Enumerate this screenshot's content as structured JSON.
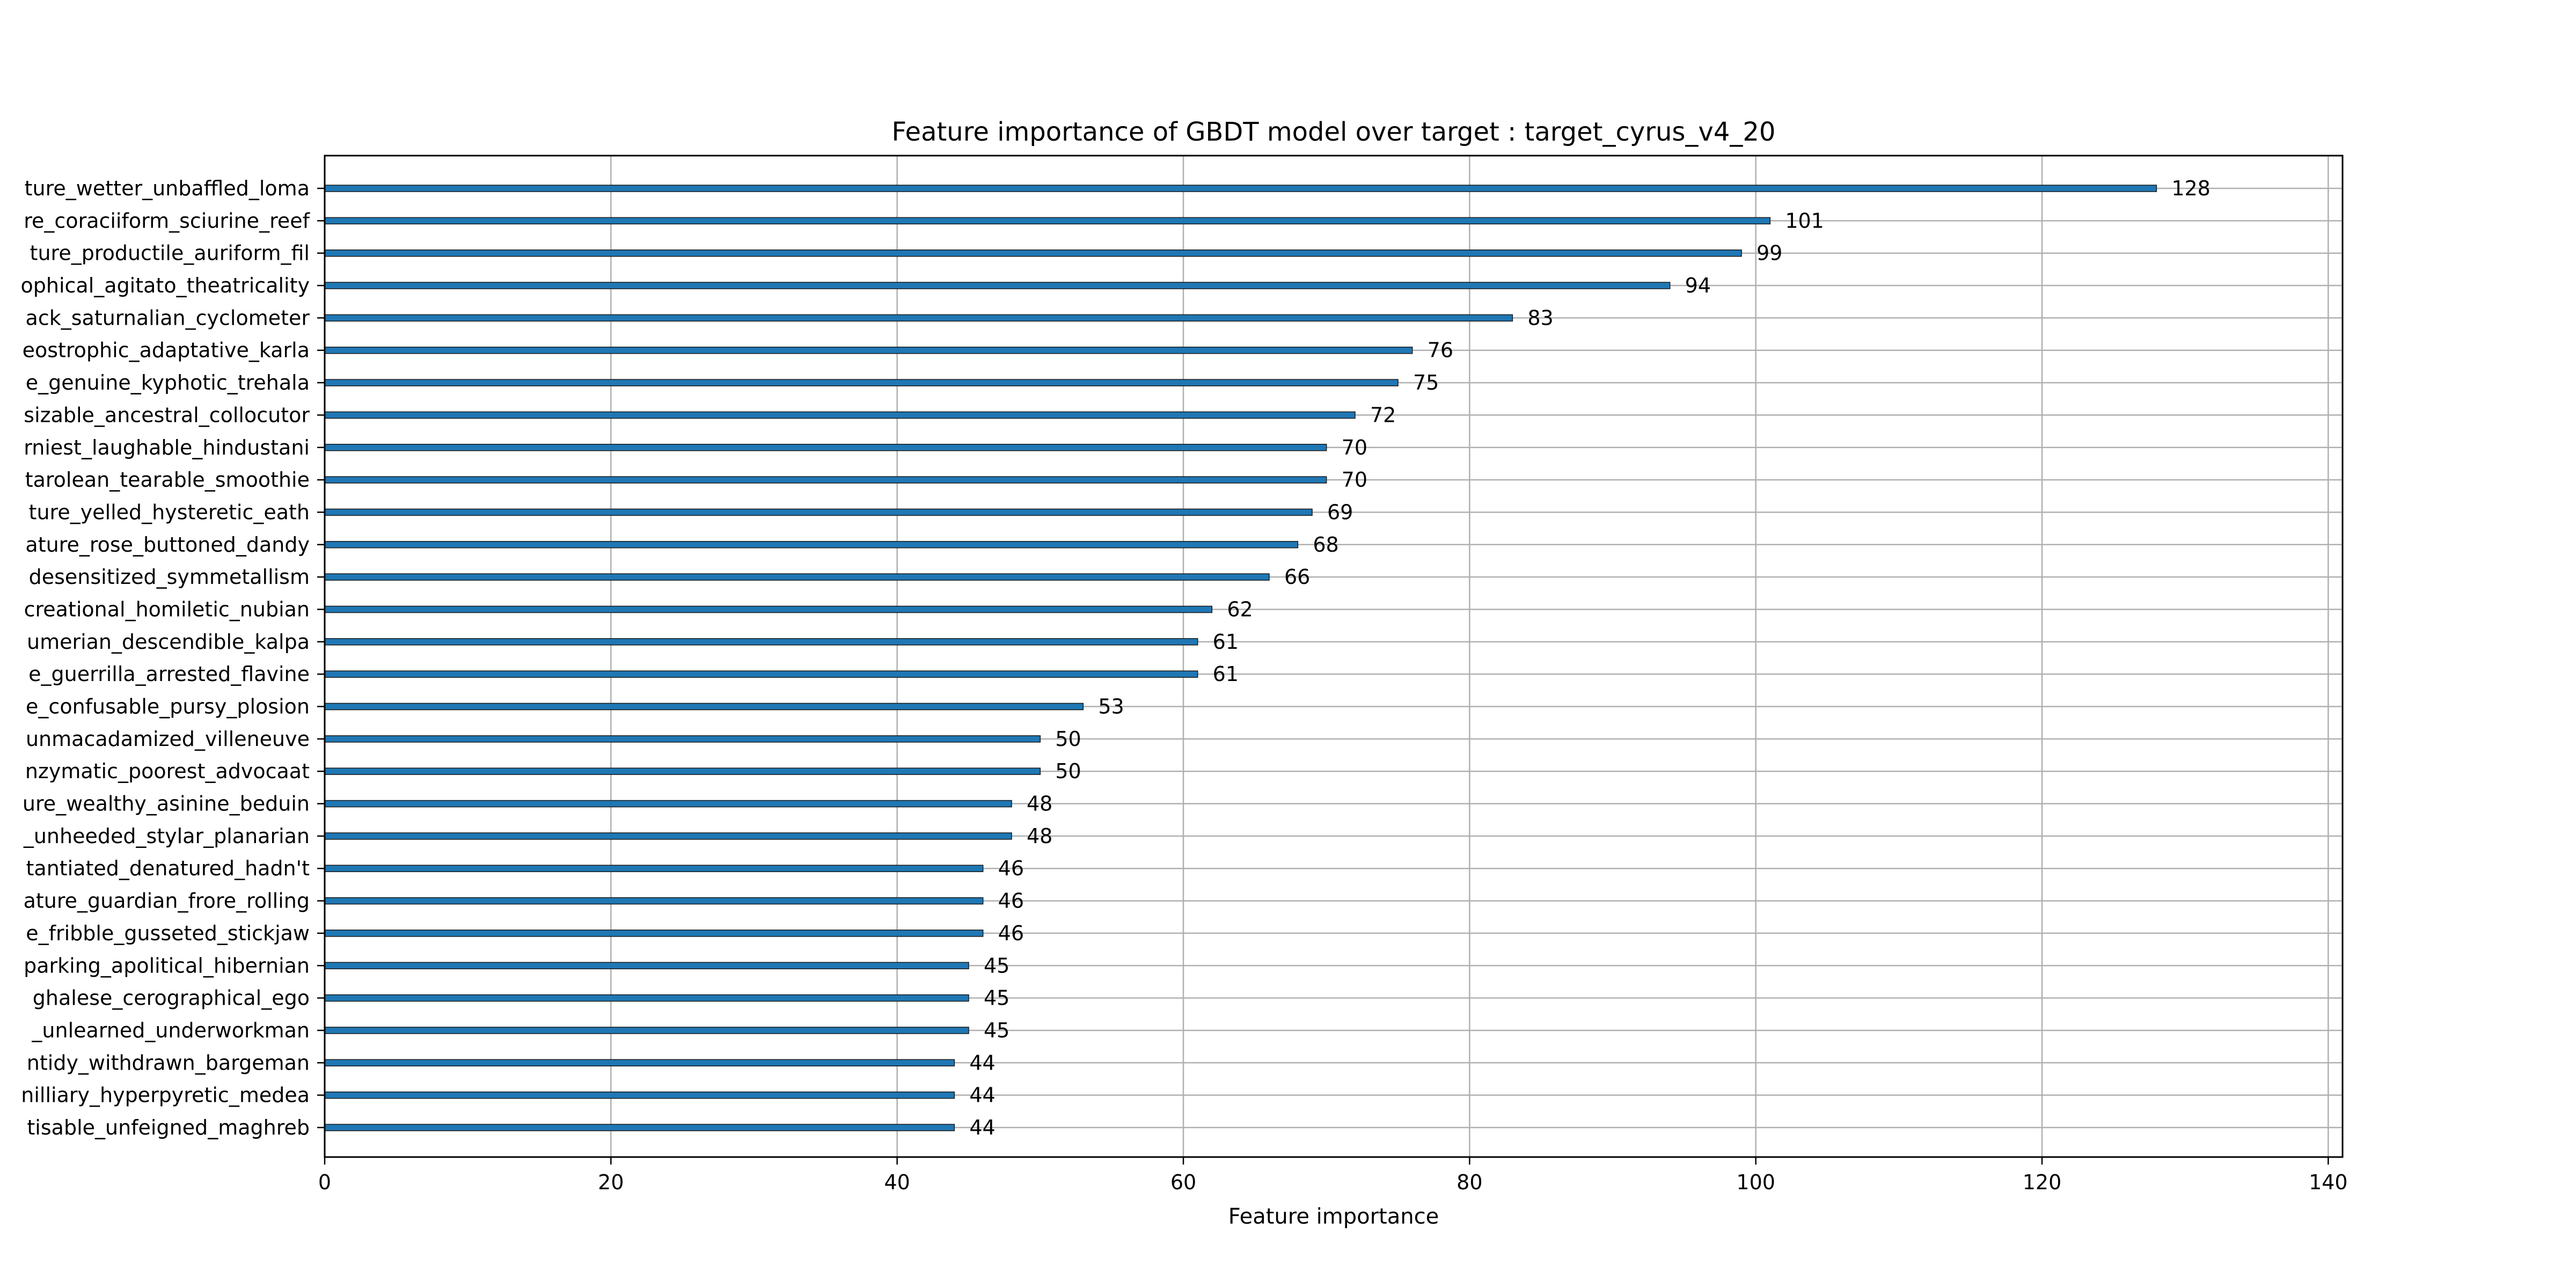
{
  "chart_data": {
    "type": "bar",
    "orientation": "horizontal",
    "title": "Feature importance of GBDT model over target : target_cyrus_v4_20",
    "xlabel": "Feature importance",
    "ylabel": "",
    "xlim": [
      0,
      141
    ],
    "xticks": [
      "0",
      "20",
      "40",
      "60",
      "80",
      "100",
      "120",
      "140"
    ],
    "grid": true,
    "bar_color": "#1f77b4",
    "categories": [
      "ture_wetter_unbaffled_loma",
      "re_coraciiform_sciurine_reef",
      "ture_productile_auriform_fil",
      "ophical_agitato_theatricality",
      "ack_saturnalian_cyclometer",
      "eostrophic_adaptative_karla",
      "e_genuine_kyphotic_trehala",
      "sizable_ancestral_collocutor",
      "rniest_laughable_hindustani",
      "tarolean_tearable_smoothie",
      "ture_yelled_hysteretic_eath",
      "ature_rose_buttoned_dandy",
      "desensitized_symmetallism",
      "creational_homiletic_nubian",
      "umerian_descendible_kalpa",
      "e_guerrilla_arrested_flavine",
      "e_confusable_pursy_plosion",
      "unmacadamized_villeneuve",
      "nzymatic_poorest_advocaat",
      "ure_wealthy_asinine_beduin",
      "_unheeded_stylar_planarian",
      "tantiated_denatured_hadn't",
      "ature_guardian_frore_rolling",
      "e_fribble_gusseted_stickjaw",
      "parking_apolitical_hibernian",
      "ghalese_cerographical_ego",
      "_unlearned_underworkman",
      "ntidy_withdrawn_bargeman",
      "nilliary_hyperpyretic_medea",
      "tisable_unfeigned_maghreb"
    ],
    "values": [
      128,
      101,
      99,
      94,
      83,
      76,
      75,
      72,
      70,
      70,
      69,
      68,
      66,
      62,
      61,
      61,
      53,
      50,
      50,
      48,
      48,
      46,
      46,
      46,
      45,
      45,
      45,
      44,
      44,
      44
    ]
  }
}
